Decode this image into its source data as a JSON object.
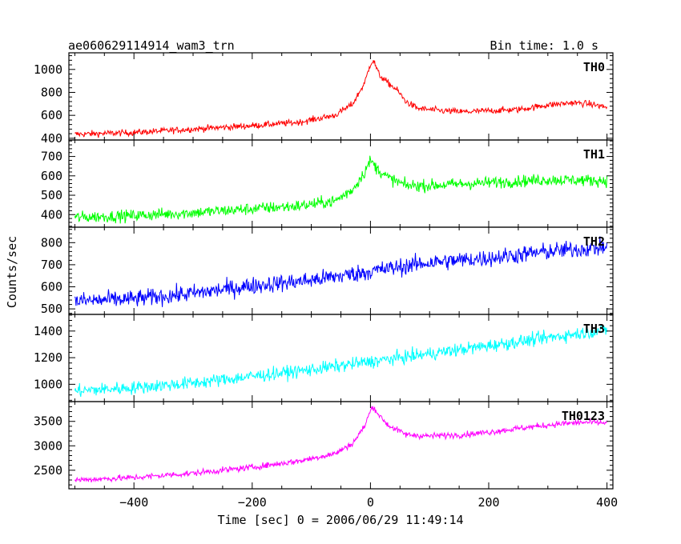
{
  "chart_data": {
    "type": "line",
    "title": "ae060629114914_wam3_trn",
    "subtitle": "Bin time: 1.0 s",
    "xlabel": "Time [sec] 0 = 2006/06/29 11:49:14",
    "ylabel": "Counts/sec",
    "xlim": [
      -510,
      410
    ],
    "xticks": [
      -400,
      -200,
      0,
      200,
      400
    ],
    "grid": false,
    "panels": [
      {
        "name": "TH0",
        "color": "#ff0000",
        "ylim": [
          385,
          1145
        ],
        "yticks": [
          400,
          600,
          800,
          1000
        ],
        "noise": 20,
        "trend": [
          [
            -500,
            435
          ],
          [
            -400,
            450
          ],
          [
            -300,
            480
          ],
          [
            -200,
            510
          ],
          [
            -120,
            540
          ],
          [
            -60,
            600
          ],
          [
            -30,
            700
          ],
          [
            -10,
            880
          ],
          [
            0,
            1050
          ],
          [
            5,
            1080
          ],
          [
            15,
            950
          ],
          [
            30,
            880
          ],
          [
            45,
            820
          ],
          [
            60,
            720
          ],
          [
            80,
            660
          ],
          [
            120,
            640
          ],
          [
            160,
            630
          ],
          [
            200,
            640
          ],
          [
            250,
            650
          ],
          [
            300,
            690
          ],
          [
            340,
            710
          ],
          [
            370,
            700
          ],
          [
            400,
            670
          ]
        ]
      },
      {
        "name": "TH1",
        "color": "#00ff00",
        "ylim": [
          335,
          785
        ],
        "yticks": [
          400,
          500,
          600,
          700
        ],
        "noise": 22,
        "trend": [
          [
            -500,
            385
          ],
          [
            -400,
            395
          ],
          [
            -300,
            410
          ],
          [
            -200,
            430
          ],
          [
            -120,
            445
          ],
          [
            -60,
            470
          ],
          [
            -30,
            530
          ],
          [
            -10,
            620
          ],
          [
            0,
            680
          ],
          [
            10,
            640
          ],
          [
            30,
            590
          ],
          [
            60,
            550
          ],
          [
            100,
            550
          ],
          [
            200,
            565
          ],
          [
            300,
            580
          ],
          [
            400,
            575
          ]
        ]
      },
      {
        "name": "TH2",
        "color": "#0000ff",
        "ylim": [
          475,
          870
        ],
        "yticks": [
          500,
          600,
          700,
          800
        ],
        "noise": 28,
        "trend": [
          [
            -500,
            535
          ],
          [
            -400,
            545
          ],
          [
            -300,
            570
          ],
          [
            -200,
            605
          ],
          [
            -100,
            630
          ],
          [
            0,
            670
          ],
          [
            100,
            710
          ],
          [
            200,
            730
          ],
          [
            300,
            760
          ],
          [
            400,
            780
          ]
        ]
      },
      {
        "name": "TH3",
        "color": "#00ffff",
        "ylim": [
          870,
          1525
        ],
        "yticks": [
          1000,
          1200,
          1400
        ],
        "noise": 35,
        "trend": [
          [
            -500,
            950
          ],
          [
            -400,
            975
          ],
          [
            -300,
            1010
          ],
          [
            -200,
            1060
          ],
          [
            -100,
            1110
          ],
          [
            0,
            1170
          ],
          [
            100,
            1230
          ],
          [
            200,
            1290
          ],
          [
            300,
            1350
          ],
          [
            400,
            1410
          ]
        ]
      },
      {
        "name": "TH0123",
        "color": "#ff00ff",
        "ylim": [
          2120,
          3905
        ],
        "yticks": [
          2500,
          3000,
          3500
        ],
        "noise": 45,
        "trend": [
          [
            -500,
            2300
          ],
          [
            -400,
            2350
          ],
          [
            -300,
            2440
          ],
          [
            -200,
            2560
          ],
          [
            -120,
            2690
          ],
          [
            -60,
            2840
          ],
          [
            -30,
            3050
          ],
          [
            -10,
            3400
          ],
          [
            0,
            3720
          ],
          [
            5,
            3800
          ],
          [
            15,
            3620
          ],
          [
            30,
            3420
          ],
          [
            60,
            3230
          ],
          [
            100,
            3200
          ],
          [
            160,
            3230
          ],
          [
            200,
            3280
          ],
          [
            260,
            3370
          ],
          [
            320,
            3450
          ],
          [
            360,
            3480
          ],
          [
            400,
            3470
          ]
        ]
      }
    ]
  }
}
